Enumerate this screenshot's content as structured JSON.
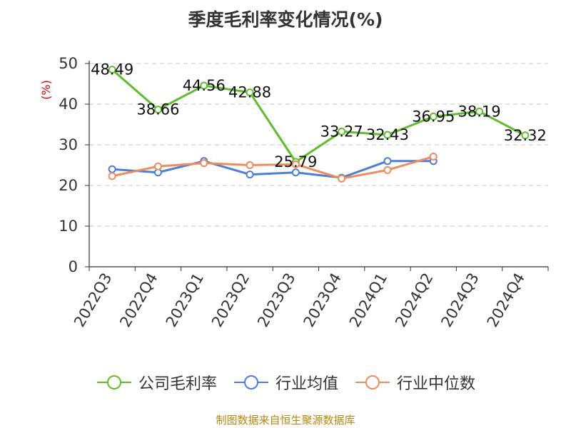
{
  "chart_data": {
    "type": "line",
    "title": "季度毛利率变化情况(%)",
    "ylabel": "(%)",
    "xlabel": "",
    "categories": [
      "2022Q3",
      "2022Q4",
      "2023Q1",
      "2023Q2",
      "2023Q3",
      "2023Q4",
      "2024Q1",
      "2024Q2",
      "2024Q3",
      "2024Q4"
    ],
    "ylim": [
      0,
      50
    ],
    "yticks": [
      0,
      10,
      20,
      30,
      40,
      50
    ],
    "ytick_labels": [
      "0",
      "10",
      "20",
      "30",
      "40",
      "50"
    ],
    "grid": true,
    "legend_position": "bottom",
    "series": [
      {
        "name": "公司毛利率",
        "color": "#5dbf2a",
        "values": [
          48.49,
          38.66,
          44.56,
          42.88,
          25.79,
          33.27,
          32.43,
          36.95,
          38.19,
          32.32
        ],
        "labels": [
          "48.49",
          "38.66",
          "44.56",
          "42.88",
          "25.79",
          "33.27",
          "32.43",
          "36.95",
          "38.19",
          "32.32"
        ]
      },
      {
        "name": "行业均值",
        "color": "#4a7fe0",
        "values": [
          24.0,
          23.2,
          26.0,
          22.7,
          23.2,
          21.9,
          26.0,
          26.0,
          null,
          null
        ]
      },
      {
        "name": "行业中位数",
        "color": "#f08c5a",
        "values": [
          22.3,
          24.7,
          25.5,
          25.0,
          25.2,
          21.7,
          23.8,
          27.1,
          null,
          null
        ]
      }
    ]
  },
  "source_note": "制图数据来自恒生聚源数据库"
}
